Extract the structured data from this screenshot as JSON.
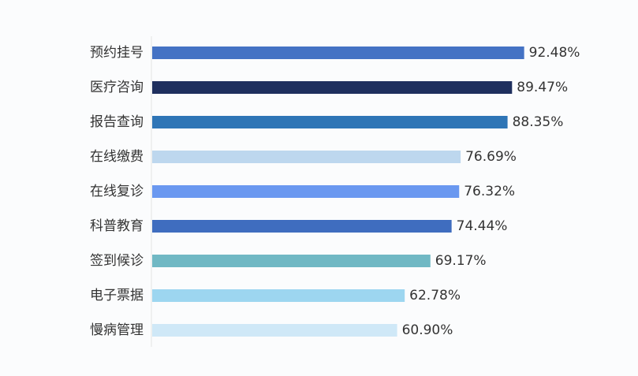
{
  "chart_data": {
    "type": "bar",
    "orientation": "horizontal",
    "categories": [
      "预约挂号",
      "医疗咨询",
      "报告查询",
      "在线缴费",
      "在线复诊",
      "科普教育",
      "签到候诊",
      "电子票据",
      "慢病管理"
    ],
    "values": [
      92.48,
      89.47,
      88.35,
      76.69,
      76.32,
      74.44,
      69.17,
      62.78,
      60.9
    ],
    "value_labels": [
      "92.48%",
      "89.47%",
      "88.35%",
      "76.69%",
      "76.32%",
      "74.44%",
      "69.17%",
      "62.78%",
      "60.90%"
    ],
    "bar_colors": [
      "#4472c4",
      "#1f2f5e",
      "#2e75b6",
      "#bdd7ee",
      "#6a98f0",
      "#3f6dbf",
      "#70b8c4",
      "#9dd6f0",
      "#cfe8f7"
    ],
    "xlim": [
      0,
      100
    ],
    "title": "",
    "xlabel": "",
    "ylabel": "",
    "grid": false,
    "legend": "none"
  }
}
